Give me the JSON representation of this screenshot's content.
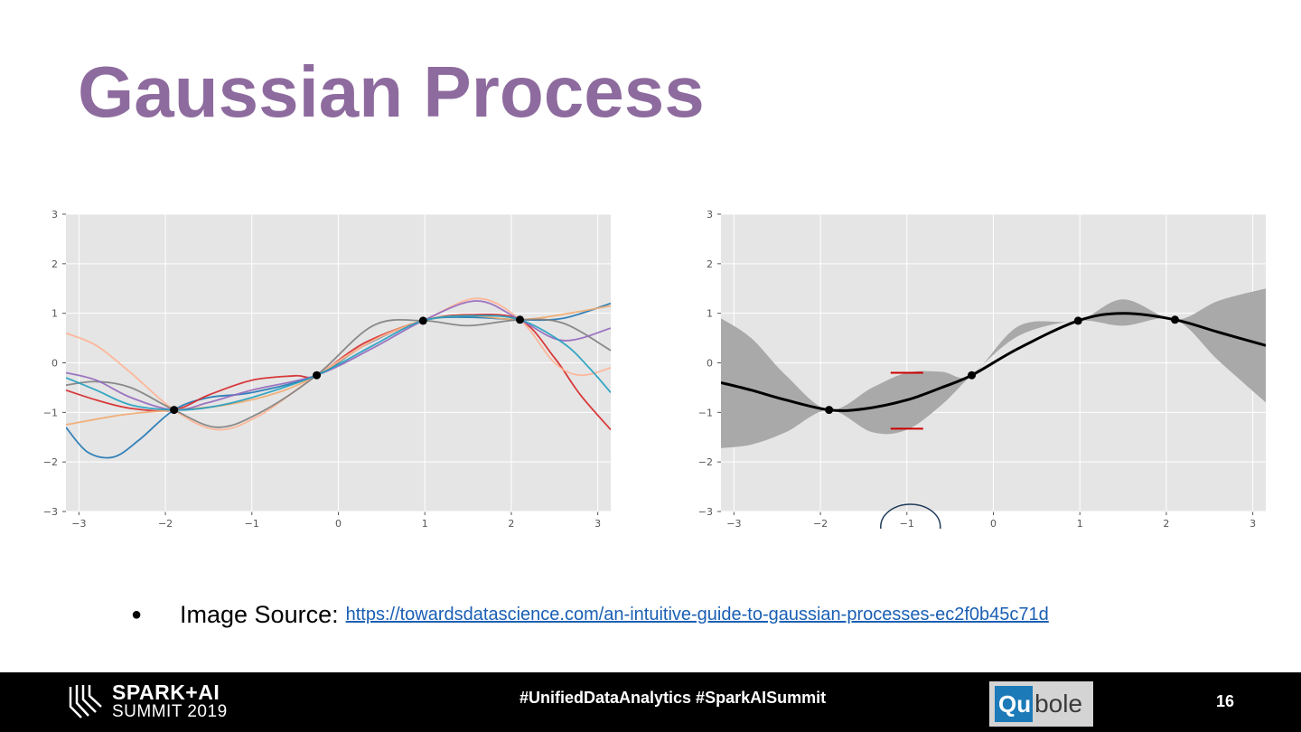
{
  "slide": {
    "title": "Gaussian Process",
    "bullet": "●",
    "source_label": "Image Source:",
    "source_link": "https://towardsdatascience.com/an-intuitive-guide-to-gaussian-processes-ec2f0b45c71d"
  },
  "footer": {
    "brand_line1": "SPARK+AI",
    "brand_line2": "SUMMIT 2019",
    "hashtags": "#UnifiedDataAnalytics #SparkAISummit",
    "sponsor_part1": "Qu",
    "sponsor_part2": "bole",
    "page_number": "16"
  },
  "colors": {
    "title": "#8e6b9e",
    "plot_background": "#e5e5e5",
    "footer_background": "#000000",
    "link": "#1a5fb4",
    "confidence_band": "#a9a9a9",
    "marker_red": "#cc0000",
    "circle_annotation": "#1f3b5a"
  },
  "chart_data": [
    {
      "type": "line",
      "xlim": [
        -3.15,
        3.15
      ],
      "ylim": [
        -3,
        3
      ],
      "xticks": [
        -3,
        -2,
        -1,
        0,
        1,
        2,
        3
      ],
      "yticks": [
        -3,
        -2,
        -1,
        0,
        1,
        2,
        3
      ],
      "xtick_labels": [
        "−3",
        "−2",
        "−1",
        "0",
        "1",
        "2",
        "3"
      ],
      "ytick_labels": [
        "−3",
        "−2",
        "−1",
        "0",
        "1",
        "2",
        "3"
      ],
      "grid": true,
      "observations": {
        "x": [
          -1.9,
          -0.25,
          0.98,
          2.1
        ],
        "y": [
          -0.95,
          -0.25,
          0.85,
          0.87
        ]
      },
      "series": [
        {
          "color": "#1f77b4",
          "x": [
            -3.15,
            -2.9,
            -2.6,
            -2.3,
            -1.9,
            -1.5,
            -1.0,
            -0.25,
            0.3,
            0.98,
            1.5,
            2.1,
            2.6,
            3.15
          ],
          "y": [
            -1.3,
            -1.8,
            -1.9,
            -1.55,
            -0.95,
            -0.7,
            -0.6,
            -0.25,
            0.35,
            0.85,
            0.92,
            0.87,
            0.9,
            1.2
          ]
        },
        {
          "color": "#d62728",
          "x": [
            -3.15,
            -2.8,
            -2.4,
            -1.9,
            -1.5,
            -1.0,
            -0.5,
            -0.25,
            0.3,
            0.98,
            1.5,
            2.1,
            2.5,
            2.8,
            3.15
          ],
          "y": [
            -0.55,
            -0.75,
            -0.92,
            -0.95,
            -0.65,
            -0.35,
            -0.26,
            -0.25,
            0.4,
            0.85,
            0.97,
            0.87,
            0.1,
            -0.65,
            -1.35
          ]
        },
        {
          "color": "#f1ab6f",
          "x": [
            -3.15,
            -2.5,
            -1.9,
            -1.3,
            -0.7,
            -0.25,
            0.4,
            0.98,
            1.5,
            2.1,
            2.6,
            3.15
          ],
          "y": [
            -1.25,
            -1.05,
            -0.95,
            -0.85,
            -0.6,
            -0.25,
            0.45,
            0.85,
            0.95,
            0.87,
            0.98,
            1.15
          ]
        },
        {
          "color": "#ffb394",
          "x": [
            -3.15,
            -2.8,
            -2.4,
            -1.9,
            -1.4,
            -0.9,
            -0.25,
            0.4,
            0.98,
            1.6,
            2.1,
            2.5,
            2.8,
            3.15
          ],
          "y": [
            0.6,
            0.35,
            -0.2,
            -0.95,
            -1.35,
            -1.05,
            -0.25,
            0.45,
            0.85,
            1.3,
            0.87,
            0.0,
            -0.25,
            -0.1
          ]
        },
        {
          "color": "#7f7f7f",
          "x": [
            -3.15,
            -2.8,
            -2.4,
            -1.9,
            -1.4,
            -0.9,
            -0.25,
            0.4,
            0.98,
            1.5,
            2.1,
            2.6,
            3.15
          ],
          "y": [
            -0.45,
            -0.38,
            -0.5,
            -0.95,
            -1.3,
            -1.0,
            -0.25,
            0.75,
            0.85,
            0.75,
            0.87,
            0.8,
            0.25
          ]
        },
        {
          "color": "#9467bd",
          "x": [
            -3.15,
            -2.8,
            -2.4,
            -1.9,
            -1.5,
            -1.0,
            -0.25,
            0.4,
            0.98,
            1.6,
            2.1,
            2.6,
            3.15
          ],
          "y": [
            -0.2,
            -0.35,
            -0.7,
            -0.95,
            -0.8,
            -0.55,
            -0.25,
            0.3,
            0.85,
            1.25,
            0.87,
            0.45,
            0.7
          ]
        },
        {
          "color": "#1f9fbf",
          "x": [
            -3.15,
            -2.8,
            -2.4,
            -1.9,
            -1.5,
            -1.0,
            -0.25,
            0.4,
            0.98,
            1.6,
            2.1,
            2.6,
            2.9,
            3.15
          ],
          "y": [
            -0.3,
            -0.55,
            -0.85,
            -0.95,
            -0.9,
            -0.7,
            -0.25,
            0.35,
            0.85,
            0.95,
            0.87,
            0.4,
            -0.1,
            -0.6
          ]
        }
      ]
    },
    {
      "type": "area",
      "xlim": [
        -3.15,
        3.15
      ],
      "ylim": [
        -3,
        3
      ],
      "xticks": [
        -3,
        -2,
        -1,
        0,
        1,
        2,
        3
      ],
      "yticks": [
        -3,
        -2,
        -1,
        0,
        1,
        2,
        3
      ],
      "xtick_labels": [
        "−3",
        "−2",
        "−1",
        "0",
        "1",
        "2",
        "3"
      ],
      "ytick_labels": [
        "−3",
        "−2",
        "−1",
        "0",
        "1",
        "2",
        "3"
      ],
      "grid": true,
      "observations": {
        "x": [
          -1.9,
          -0.25,
          0.98,
          2.1
        ],
        "y": [
          -0.95,
          -0.25,
          0.85,
          0.87
        ]
      },
      "mean": {
        "x": [
          -3.15,
          -2.8,
          -2.4,
          -1.9,
          -1.5,
          -1.0,
          -0.6,
          -0.25,
          0.3,
          0.98,
          1.5,
          2.1,
          2.6,
          3.15
        ],
        "y": [
          -0.4,
          -0.55,
          -0.75,
          -0.95,
          -0.93,
          -0.75,
          -0.5,
          -0.25,
          0.3,
          0.85,
          1.0,
          0.87,
          0.62,
          0.35
        ]
      },
      "upper": {
        "x": [
          -3.15,
          -2.8,
          -2.4,
          -1.9,
          -1.4,
          -1.0,
          -0.6,
          -0.25,
          0.3,
          0.98,
          1.5,
          2.1,
          2.6,
          3.15
        ],
        "y": [
          0.9,
          0.5,
          -0.25,
          -0.95,
          -0.5,
          -0.2,
          -0.18,
          -0.25,
          0.75,
          0.85,
          1.28,
          0.87,
          1.25,
          1.5
        ]
      },
      "lower": {
        "x": [
          -3.15,
          -2.8,
          -2.4,
          -1.9,
          -1.4,
          -1.0,
          -0.6,
          -0.25,
          0.3,
          0.98,
          1.5,
          2.1,
          2.6,
          3.15
        ],
        "y": [
          -1.72,
          -1.65,
          -1.4,
          -0.95,
          -1.4,
          -1.35,
          -0.85,
          -0.25,
          0.55,
          0.85,
          0.75,
          0.87,
          0.05,
          -0.8
        ]
      },
      "marker_x": -1,
      "marker_y": [
        -0.2,
        -1.33
      ]
    }
  ]
}
